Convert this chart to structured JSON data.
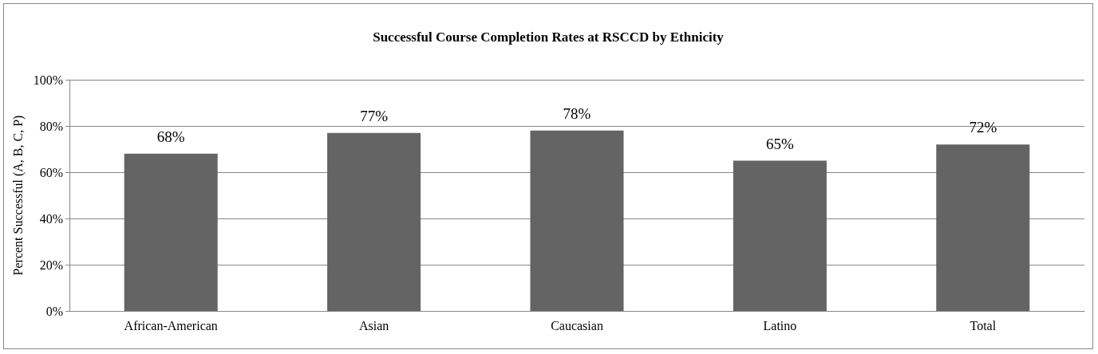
{
  "chart_data": {
    "type": "bar",
    "title": "Successful Course Completion Rates at RSCCD by Ethnicity",
    "ylabel": "Percent Successful (A, B, C, P)",
    "categories": [
      "African-American",
      "Asian",
      "Caucasian",
      "Latino",
      "Total"
    ],
    "values": [
      68,
      77,
      78,
      65,
      72
    ],
    "value_labels": [
      "68%",
      "77%",
      "78%",
      "65%",
      "72%"
    ],
    "color": "#646464",
    "ylim": [
      0,
      100
    ],
    "yticks": [
      {
        "value": 0,
        "label": "0%"
      },
      {
        "value": 20,
        "label": "20%"
      },
      {
        "value": 40,
        "label": "40%"
      },
      {
        "value": 60,
        "label": "60%"
      },
      {
        "value": 80,
        "label": "80%"
      },
      {
        "value": 100,
        "label": "100%"
      }
    ],
    "grid": "y"
  }
}
